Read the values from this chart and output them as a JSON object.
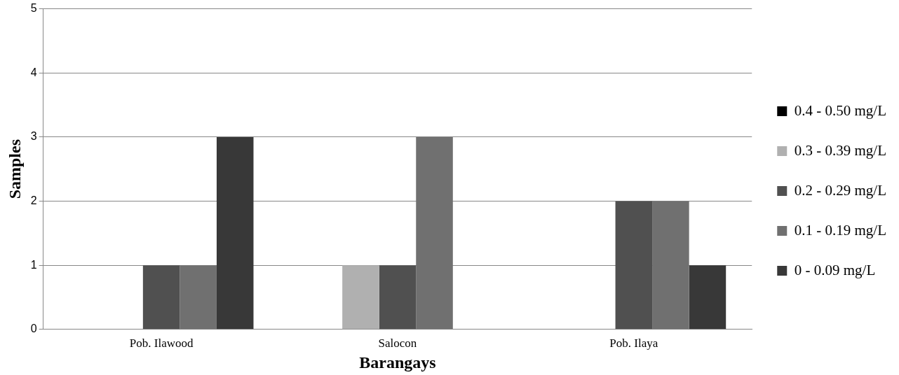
{
  "chart_data": {
    "type": "bar",
    "xlabel": "Barangays",
    "ylabel": "Samples",
    "categories": [
      "Pob. Ilawood",
      "Salocon",
      "Pob. Ilaya"
    ],
    "series": [
      {
        "name": "0.4 - 0.50 mg/L",
        "color": "#000000",
        "values": [
          0,
          0,
          0
        ]
      },
      {
        "name": "0.3 - 0.39 mg/L",
        "color": "#b0b0b0",
        "values": [
          0,
          1,
          0
        ]
      },
      {
        "name": "0.2 - 0.29 mg/L",
        "color": "#505050",
        "values": [
          1,
          1,
          2
        ]
      },
      {
        "name": "0.1 - 0.19 mg/L",
        "color": "#707070",
        "values": [
          1,
          3,
          2
        ]
      },
      {
        "name": "0 - 0.09 mg/L",
        "color": "#383838",
        "values": [
          3,
          0,
          1
        ]
      }
    ],
    "ylim": [
      0,
      5
    ],
    "yticks": [
      0,
      1,
      2,
      3,
      4,
      5
    ],
    "grid": "y",
    "legend": "right"
  }
}
